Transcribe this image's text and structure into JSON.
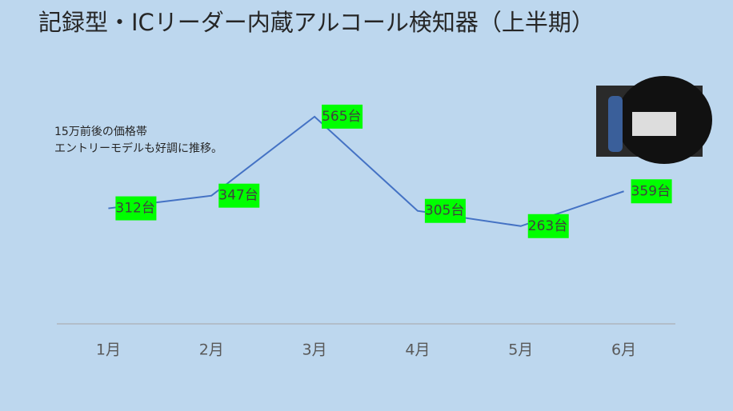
{
  "chart_data": {
    "type": "line",
    "title": "記録型・ICリーダー内蔵アルコール検知器（上半期）",
    "annotation": [
      "15万前後の価格帯",
      "エントリーモデルも好調に推移。"
    ],
    "categories": [
      "1月",
      "2月",
      "3月",
      "4月",
      "5月",
      "6月"
    ],
    "values": [
      312,
      347,
      565,
      305,
      263,
      359
    ],
    "value_labels": [
      "312台",
      "347台",
      "565台",
      "305台",
      "263台",
      "359台"
    ],
    "color": "#4472c4",
    "label_background": "#00ff00",
    "ylim": [
      0,
      750
    ]
  }
}
